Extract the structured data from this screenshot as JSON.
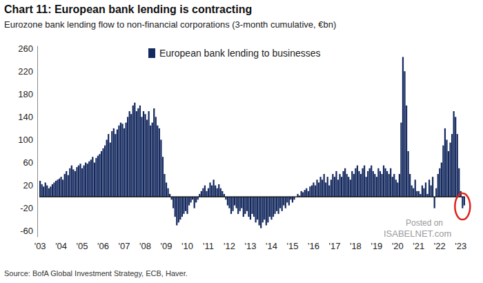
{
  "chart_data": {
    "type": "bar",
    "title": "Chart 11: European bank lending is contracting",
    "subtitle": "Eurozone bank lending flow to non-financial corporations (3-month cumulative, €bn)",
    "source": "Source: BofA Global Investment Strategy, ECB, Haver.",
    "annotations": [
      "Posted on",
      "ISABELNET.com"
    ],
    "categories": [
      "'03",
      null,
      null,
      null,
      null,
      null,
      null,
      null,
      null,
      null,
      null,
      null,
      "'04",
      null,
      null,
      null,
      null,
      null,
      null,
      null,
      null,
      null,
      null,
      null,
      "'05",
      null,
      null,
      null,
      null,
      null,
      null,
      null,
      null,
      null,
      null,
      null,
      "'06",
      null,
      null,
      null,
      null,
      null,
      null,
      null,
      null,
      null,
      null,
      null,
      "'07",
      null,
      null,
      null,
      null,
      null,
      null,
      null,
      null,
      null,
      null,
      null,
      "'08",
      null,
      null,
      null,
      null,
      null,
      null,
      null,
      null,
      null,
      null,
      null,
      "'09",
      null,
      null,
      null,
      null,
      null,
      null,
      null,
      null,
      null,
      null,
      null,
      "'10",
      null,
      null,
      null,
      null,
      null,
      null,
      null,
      null,
      null,
      null,
      null,
      "'11",
      null,
      null,
      null,
      null,
      null,
      null,
      null,
      null,
      null,
      null,
      null,
      "'12",
      null,
      null,
      null,
      null,
      null,
      null,
      null,
      null,
      null,
      null,
      null,
      "'13",
      null,
      null,
      null,
      null,
      null,
      null,
      null,
      null,
      null,
      null,
      null,
      "'14",
      null,
      null,
      null,
      null,
      null,
      null,
      null,
      null,
      null,
      null,
      null,
      "'15",
      null,
      null,
      null,
      null,
      null,
      null,
      null,
      null,
      null,
      null,
      null,
      "'16",
      null,
      null,
      null,
      null,
      null,
      null,
      null,
      null,
      null,
      null,
      null,
      "'17",
      null,
      null,
      null,
      null,
      null,
      null,
      null,
      null,
      null,
      null,
      null,
      "'18",
      null,
      null,
      null,
      null,
      null,
      null,
      null,
      null,
      null,
      null,
      null,
      "'19",
      null,
      null,
      null,
      null,
      null,
      null,
      null,
      null,
      null,
      null,
      null,
      "'20",
      null,
      null,
      null,
      null,
      null,
      null,
      null,
      null,
      null,
      null,
      null,
      "'21",
      null,
      null,
      null,
      null,
      null,
      null,
      null,
      null,
      null,
      null,
      null,
      "'22",
      null,
      null,
      null,
      null,
      null,
      null,
      null,
      null,
      null,
      null,
      null,
      "'23",
      null,
      null
    ],
    "series": [
      {
        "name": "European bank lending to businesses",
        "color": "#14295e",
        "values": [
          28,
          22,
          18,
          25,
          20,
          15,
          18,
          22,
          25,
          28,
          30,
          32,
          35,
          30,
          40,
          45,
          38,
          50,
          55,
          48,
          45,
          52,
          55,
          58,
          50,
          55,
          60,
          58,
          62,
          65,
          70,
          60,
          68,
          72,
          75,
          80,
          85,
          90,
          100,
          110,
          95,
          115,
          120,
          110,
          118,
          125,
          130,
          128,
          120,
          130,
          140,
          150,
          145,
          160,
          165,
          150,
          155,
          160,
          140,
          150,
          145,
          135,
          150,
          125,
          130,
          155,
          140,
          125,
          120,
          100,
          70,
          40,
          25,
          15,
          5,
          -5,
          -20,
          -35,
          -50,
          -45,
          -40,
          -35,
          -30,
          -25,
          -30,
          -15,
          -10,
          -5,
          -20,
          -10,
          -5,
          5,
          10,
          15,
          20,
          10,
          15,
          25,
          20,
          30,
          20,
          15,
          22,
          15,
          10,
          5,
          -5,
          -15,
          -20,
          -30,
          -25,
          -15,
          -20,
          -30,
          -25,
          -20,
          -35,
          -30,
          -25,
          -35,
          -40,
          -30,
          -35,
          -45,
          -40,
          -50,
          -55,
          -45,
          -40,
          -50,
          -45,
          -35,
          -40,
          -35,
          -30,
          -25,
          -30,
          -20,
          -25,
          -15,
          -20,
          -10,
          -15,
          -5,
          -10,
          -5,
          0,
          5,
          2,
          10,
          8,
          12,
          15,
          10,
          18,
          20,
          25,
          20,
          30,
          25,
          35,
          30,
          40,
          25,
          35,
          20,
          30,
          40,
          35,
          45,
          30,
          40,
          35,
          45,
          50,
          40,
          35,
          30,
          45,
          40,
          50,
          55,
          45,
          40,
          50,
          55,
          35,
          45,
          50,
          55,
          45,
          40,
          35,
          50,
          45,
          40,
          55,
          50,
          45,
          40,
          50,
          35,
          40,
          30,
          25,
          40,
          130,
          245,
          220,
          160,
          80,
          40,
          20,
          15,
          30,
          10,
          10,
          5,
          20,
          15,
          25,
          5,
          30,
          20,
          35,
          -20,
          15,
          40,
          50,
          60,
          90,
          120,
          100,
          80,
          95,
          110,
          150,
          140,
          110,
          50,
          10,
          -20,
          -15
        ]
      }
    ],
    "ylim": [
      -70,
      265
    ],
    "yticks": [
      -60,
      -20,
      20,
      60,
      100,
      140,
      180,
      220,
      260
    ],
    "grid": false,
    "legend": "top-left"
  }
}
